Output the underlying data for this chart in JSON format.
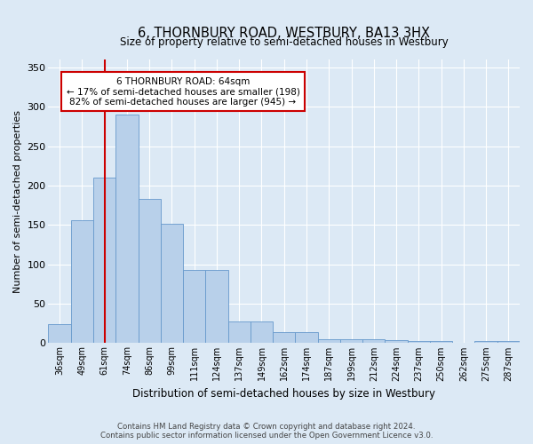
{
  "title": "6, THORNBURY ROAD, WESTBURY, BA13 3HX",
  "subtitle": "Size of property relative to semi-detached houses in Westbury",
  "xlabel": "Distribution of semi-detached houses by size in Westbury",
  "ylabel": "Number of semi-detached properties",
  "categories": [
    "36sqm",
    "49sqm",
    "61sqm",
    "74sqm",
    "86sqm",
    "99sqm",
    "111sqm",
    "124sqm",
    "137sqm",
    "149sqm",
    "162sqm",
    "174sqm",
    "187sqm",
    "199sqm",
    "212sqm",
    "224sqm",
    "237sqm",
    "250sqm",
    "262sqm",
    "275sqm",
    "287sqm"
  ],
  "values": [
    24,
    156,
    210,
    290,
    183,
    152,
    93,
    93,
    27,
    27,
    14,
    14,
    5,
    5,
    5,
    4,
    3,
    3,
    0,
    3,
    3
  ],
  "bar_color": "#b8d0ea",
  "bar_edge_color": "#6699cc",
  "background_color": "#dce9f5",
  "grid_color": "#ffffff",
  "property_line_x": 2,
  "property_line_color": "#cc0000",
  "annotation_text": "6 THORNBURY ROAD: 64sqm\n← 17% of semi-detached houses are smaller (198)\n82% of semi-detached houses are larger (945) →",
  "annotation_box_color": "#ffffff",
  "annotation_box_edge_color": "#cc0000",
  "footer_line1": "Contains HM Land Registry data © Crown copyright and database right 2024.",
  "footer_line2": "Contains public sector information licensed under the Open Government Licence v3.0.",
  "ylim": [
    0,
    360
  ],
  "yticks": [
    0,
    50,
    100,
    150,
    200,
    250,
    300,
    350
  ],
  "figsize": [
    6.0,
    5.0
  ],
  "dpi": 100
}
